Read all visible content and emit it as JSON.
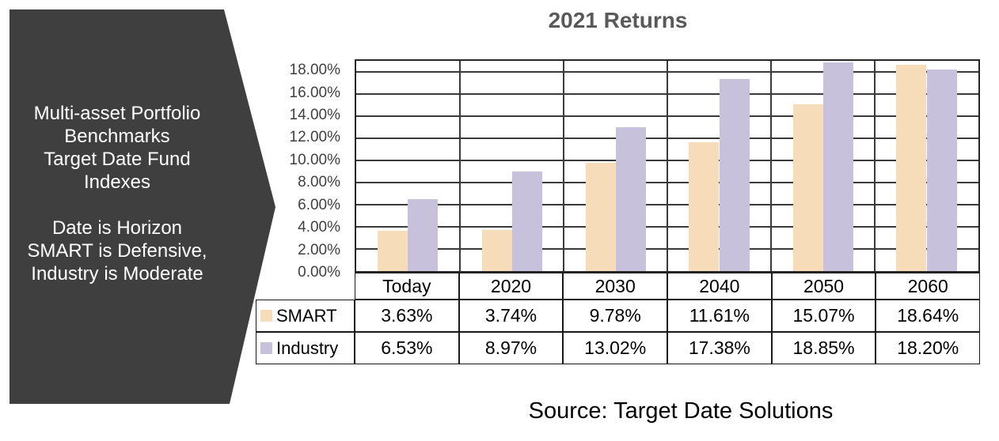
{
  "arrow_callout": {
    "fill": "#3F3F3F",
    "text_color": "#FFFFFF",
    "lines": [
      "Multi-asset Portfolio",
      "Benchmarks",
      "Target Date Fund",
      "Indexes",
      "",
      "Date is Horizon",
      "SMART is Defensive,",
      "Industry is Moderate"
    ]
  },
  "chart_data": {
    "type": "bar",
    "title": "2021 Returns",
    "title_color": "#595959",
    "categories": [
      "Today",
      "2020",
      "2030",
      "2040",
      "2050",
      "2060"
    ],
    "series": [
      {
        "name": "SMART",
        "color": "#F7DCBA",
        "values": [
          3.63,
          3.74,
          9.78,
          11.61,
          15.07,
          18.64
        ]
      },
      {
        "name": "Industry",
        "color": "#C8C1DC",
        "values": [
          6.53,
          8.97,
          13.02,
          17.38,
          18.85,
          18.2
        ]
      }
    ],
    "ylim": [
      0,
      19
    ],
    "y_major_unit": 2,
    "y_ticks": [
      18,
      16,
      14,
      12,
      10,
      8,
      6,
      4,
      2,
      0
    ],
    "tick_format": "0.00%",
    "grid": true,
    "gridline_color": "#3a3a3a",
    "legend_position": "data-table-left"
  },
  "source_note": "Source: Target Date Solutions"
}
